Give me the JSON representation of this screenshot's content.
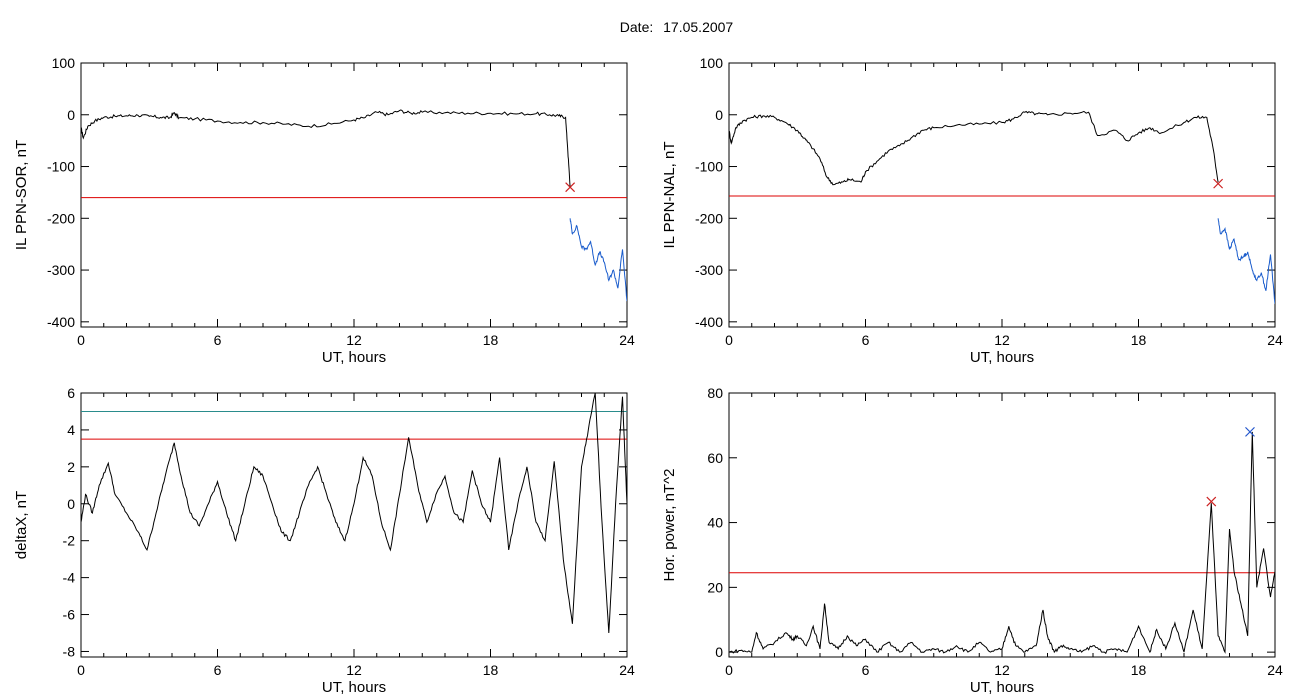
{
  "header": {
    "date_label": "Date:",
    "date_value": "17.05.2007"
  },
  "chart_data": [
    {
      "type": "line",
      "xlabel": "UT, hours",
      "ylabel": "IL PPN-SOR, nT",
      "xlim": [
        0,
        24
      ],
      "ylim": [
        -410,
        100
      ],
      "xticks": [
        0,
        6,
        12,
        18,
        24
      ],
      "yticks": [
        100,
        0,
        -100,
        -200,
        -300,
        -400
      ],
      "grid": false,
      "colors": {
        "main": "#000000",
        "threshold": "#dd0000",
        "tail": "#1a5ccc",
        "marker": "#cc2222"
      },
      "series": [
        {
          "values_x": [
            0,
            0.1,
            0.3,
            0.6,
            1.0,
            1.5,
            2.0,
            2.5,
            3.0,
            3.5,
            3.9,
            4.1,
            4.3,
            5.0,
            6.0,
            7.0,
            8.0,
            9.0,
            10.0,
            11.0,
            12.0,
            12.5,
            13.0,
            13.5,
            14.0,
            14.5,
            15.0,
            16.0,
            17.0,
            18.0,
            19.0,
            20.0,
            20.6,
            21.0,
            21.3,
            21.4,
            21.5
          ],
          "values_y": [
            -25,
            -45,
            -22,
            -12,
            -5,
            -3,
            -2,
            -1,
            -3,
            -5,
            -6,
            4,
            -6,
            -8,
            -12,
            -15,
            -15,
            -18,
            -22,
            -18,
            -10,
            -5,
            5,
            0,
            8,
            3,
            5,
            4,
            3,
            3,
            2,
            2,
            0,
            -2,
            -5,
            -70,
            -140
          ]
        },
        {
          "values_x": [
            21.5,
            21.6,
            21.8,
            22.0,
            22.2,
            22.4,
            22.6,
            22.8,
            23.0,
            23.2,
            23.4,
            23.6,
            23.8,
            24.0
          ],
          "values_y": [
            -200,
            -230,
            -215,
            -255,
            -260,
            -245,
            -290,
            -265,
            -285,
            -320,
            -300,
            -335,
            -260,
            -360
          ]
        }
      ],
      "threshold": -160,
      "marker": {
        "x": 21.5,
        "y": -140
      }
    },
    {
      "type": "line",
      "xlabel": "UT, hours",
      "ylabel": "IL PPN-NAL, nT",
      "xlim": [
        0,
        24
      ],
      "ylim": [
        -410,
        100
      ],
      "xticks": [
        0,
        6,
        12,
        18,
        24
      ],
      "yticks": [
        100,
        0,
        -100,
        -200,
        -300,
        -400
      ],
      "grid": false,
      "colors": {
        "main": "#000000",
        "threshold": "#dd0000",
        "tail": "#1a5ccc",
        "marker": "#cc2222"
      },
      "series": [
        {
          "values_x": [
            0,
            0.1,
            0.3,
            0.6,
            1.0,
            1.5,
            2.0,
            2.5,
            3.0,
            3.3,
            3.6,
            4.0,
            4.3,
            4.6,
            5.0,
            5.3,
            5.8,
            6.0,
            6.5,
            7.0,
            7.5,
            8.0,
            8.5,
            9.0,
            10.0,
            11.0,
            12.0,
            12.5,
            13.0,
            13.5,
            14.0,
            15.0,
            15.8,
            16.2,
            17.0,
            17.5,
            18.0,
            18.5,
            19.0,
            20.0,
            20.5,
            21.0,
            21.3,
            21.5
          ],
          "values_y": [
            -30,
            -55,
            -25,
            -12,
            -5,
            -2,
            -5,
            -15,
            -30,
            -45,
            -60,
            -85,
            -120,
            -135,
            -130,
            -125,
            -130,
            -110,
            -90,
            -70,
            -60,
            -45,
            -30,
            -25,
            -20,
            -18,
            -15,
            -8,
            5,
            2,
            0,
            3,
            5,
            -40,
            -30,
            -50,
            -35,
            -25,
            -35,
            -15,
            -5,
            -5,
            -70,
            -130
          ]
        },
        {
          "values_x": [
            21.5,
            21.6,
            21.8,
            22.0,
            22.2,
            22.4,
            22.6,
            22.8,
            23.0,
            23.2,
            23.4,
            23.6,
            23.8,
            24.0
          ],
          "values_y": [
            -200,
            -230,
            -220,
            -260,
            -240,
            -280,
            -275,
            -265,
            -300,
            -320,
            -305,
            -340,
            -270,
            -365
          ]
        }
      ],
      "threshold": -157,
      "marker": {
        "x": 21.5,
        "y": -133
      }
    },
    {
      "type": "line",
      "xlabel": "UT, hours",
      "ylabel": "deltaX, nT",
      "xlim": [
        0,
        24
      ],
      "ylim": [
        -8.3,
        6
      ],
      "xticks": [
        0,
        6,
        12,
        18,
        24
      ],
      "yticks": [
        6,
        4,
        2,
        0,
        -2,
        -4,
        -6,
        -8
      ],
      "grid": false,
      "colors": {
        "main": "#000000",
        "threshold_red": "#dd0000",
        "threshold_teal": "#2a8c8c"
      },
      "series": [
        {
          "values_x": [
            0,
            0.2,
            0.5,
            0.8,
            1.2,
            1.5,
            2.0,
            2.5,
            2.9,
            3.3,
            3.7,
            4.1,
            4.4,
            4.8,
            5.2,
            5.6,
            6.0,
            6.4,
            6.8,
            7.2,
            7.6,
            8.0,
            8.4,
            8.8,
            9.2,
            9.6,
            10.0,
            10.4,
            10.8,
            11.2,
            11.6,
            12.0,
            12.4,
            12.8,
            13.2,
            13.6,
            14.0,
            14.4,
            14.8,
            15.2,
            15.6,
            16.0,
            16.4,
            16.8,
            17.2,
            17.6,
            18.0,
            18.4,
            18.8,
            19.2,
            19.6,
            20.0,
            20.4,
            20.8,
            21.2,
            21.6,
            22.0,
            22.3,
            22.6,
            22.9,
            23.2,
            23.5,
            23.8,
            24.0
          ],
          "values_y": [
            -1,
            0.5,
            -0.5,
            1,
            2.2,
            0.5,
            -0.5,
            -1.5,
            -2.5,
            -0.5,
            1.5,
            3.3,
            1.5,
            -0.5,
            -1.2,
            0,
            1.2,
            -0.5,
            -2,
            0,
            2,
            1.5,
            0,
            -1.5,
            -2,
            -0.5,
            1,
            2,
            0.5,
            -1,
            -2,
            0,
            2.5,
            1.5,
            -1,
            -2.5,
            0.5,
            3.6,
            1,
            -1,
            0.5,
            1.5,
            -0.5,
            -1,
            1.8,
            0,
            -1,
            2.5,
            -2.5,
            0,
            2,
            -1,
            -2,
            2.3,
            -3,
            -6.5,
            2,
            4,
            6,
            -1,
            -7,
            0,
            5.8,
            0
          ]
        }
      ],
      "thresholds": [
        3.5,
        5
      ]
    },
    {
      "type": "line",
      "xlabel": "UT, hours",
      "ylabel": "Hor. power, nT^2",
      "xlim": [
        0,
        24
      ],
      "ylim": [
        -1.5,
        80
      ],
      "xticks": [
        0,
        6,
        12,
        18,
        24
      ],
      "yticks": [
        80,
        60,
        40,
        20,
        0
      ],
      "grid": false,
      "colors": {
        "main": "#000000",
        "threshold": "#dd0000",
        "marker_red": "#cc2222",
        "marker_blue": "#2255cc"
      },
      "series": [
        {
          "values_x": [
            0,
            0.5,
            1.0,
            1.2,
            1.5,
            2.0,
            2.5,
            2.8,
            3.0,
            3.4,
            3.7,
            4.0,
            4.2,
            4.4,
            4.8,
            5.2,
            5.6,
            6.0,
            6.5,
            7.0,
            7.5,
            8.0,
            8.5,
            9.0,
            9.5,
            10.0,
            10.5,
            11.0,
            11.5,
            12.0,
            12.3,
            12.6,
            13.0,
            13.5,
            13.8,
            14.0,
            14.3,
            14.6,
            15.0,
            15.5,
            16.0,
            16.5,
            17.0,
            17.5,
            18.0,
            18.5,
            18.8,
            19.2,
            19.6,
            20.0,
            20.4,
            20.8,
            21.2,
            21.5,
            21.8,
            22.0,
            22.2,
            22.5,
            22.8,
            23.0,
            23.2,
            23.5,
            23.8,
            24.0
          ],
          "values_y": [
            0,
            0.5,
            0,
            6,
            1,
            3,
            6,
            4,
            5,
            2,
            8,
            1,
            15,
            3,
            1,
            5,
            2,
            4,
            0,
            3,
            0,
            3,
            0,
            1,
            0,
            2,
            0,
            3,
            0,
            1,
            8,
            2,
            0,
            2,
            13,
            5,
            0,
            2,
            1,
            0,
            2,
            0,
            1,
            0,
            8,
            0,
            7,
            1,
            9,
            0,
            13,
            1,
            46,
            5,
            0,
            38,
            25,
            15,
            5,
            68,
            20,
            32,
            17,
            25
          ]
        }
      ],
      "threshold": 24.5,
      "markers": [
        {
          "x": 21.2,
          "y": 46.5,
          "color": "red"
        },
        {
          "x": 22.9,
          "y": 68,
          "color": "blue"
        }
      ]
    }
  ]
}
